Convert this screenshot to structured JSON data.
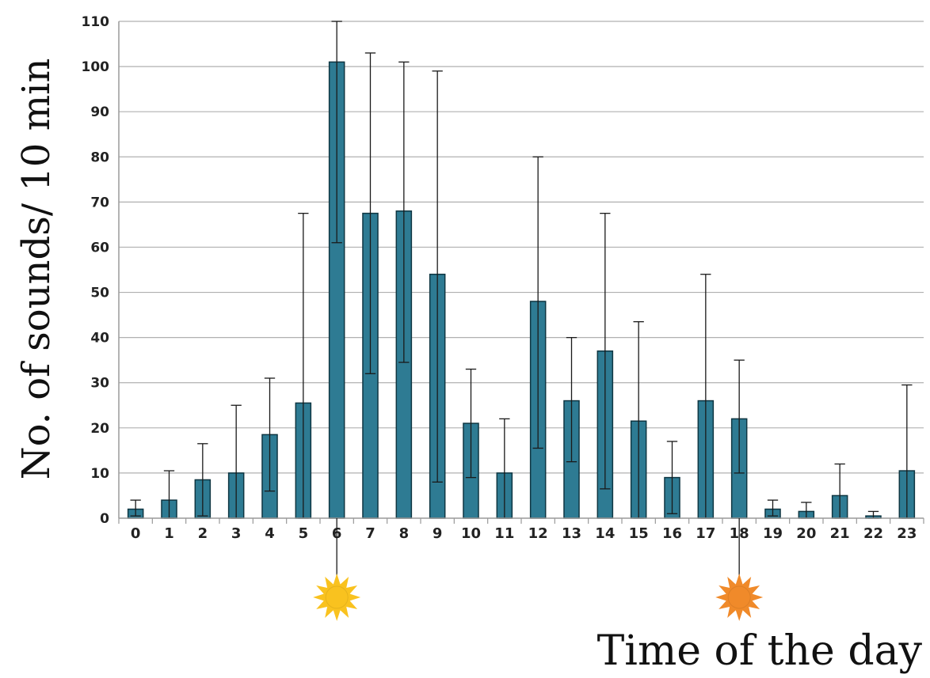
{
  "chart_data": {
    "type": "bar",
    "title": "",
    "xlabel": "Time of the day",
    "ylabel": "No. of sounds/ 10 min",
    "categories": [
      "0",
      "1",
      "2",
      "3",
      "4",
      "5",
      "6",
      "7",
      "8",
      "9",
      "10",
      "11",
      "12",
      "13",
      "14",
      "15",
      "16",
      "17",
      "18",
      "19",
      "20",
      "21",
      "22",
      "23"
    ],
    "values": [
      2,
      4,
      8.5,
      10,
      18.5,
      25.5,
      101,
      67.5,
      68,
      54,
      21,
      10,
      48,
      26,
      37,
      21.5,
      9,
      26,
      22,
      2,
      1.5,
      5,
      0.5,
      10.5
    ],
    "error_upper": [
      4,
      10.5,
      16.5,
      25,
      31,
      67.5,
      110,
      103,
      101,
      99,
      33,
      22,
      80,
      40,
      67.5,
      43.5,
      17,
      54,
      35,
      4,
      3.5,
      12,
      1.5,
      29.5
    ],
    "error_lower": [
      0.5,
      0,
      0.5,
      0,
      6,
      0,
      61,
      32,
      34.5,
      8,
      9,
      0,
      15.5,
      12.5,
      6.5,
      0,
      1,
      0,
      10,
      0.5,
      0,
      0,
      0,
      0
    ],
    "ylim": [
      0,
      110
    ],
    "ytick_step": 10,
    "grid": true,
    "bar_color": "#2e7b93",
    "bar_edge_color": "#0f3642",
    "markers": [
      {
        "name": "sunrise-icon",
        "category": "6",
        "color": "#f9c21f"
      },
      {
        "name": "sunset-icon",
        "category": "18",
        "color": "#f08a2a"
      }
    ]
  }
}
